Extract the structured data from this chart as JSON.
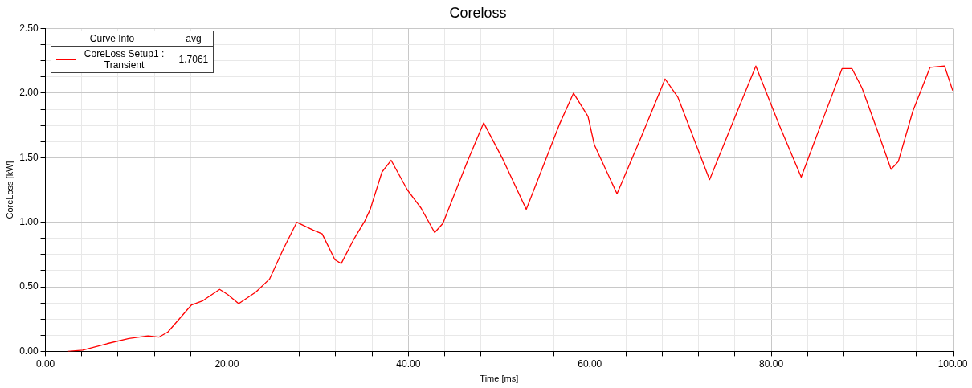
{
  "chart_data": {
    "type": "line",
    "title": "Coreloss",
    "xlabel": "Time [ms]",
    "ylabel": "CoreLoss [kW]",
    "legend_title": "Curve Info",
    "annotations": [
      "avg",
      "1.7061"
    ],
    "legend": "top left",
    "grid": true,
    "marker": "none",
    "line_style": "solid",
    "xlim": [
      0,
      100
    ],
    "ylim": [
      0,
      2.5
    ],
    "xticks": [
      {
        "value": 0,
        "label": "0.00"
      },
      {
        "value": 4,
        "label": null
      },
      {
        "value": 8,
        "label": null
      },
      {
        "value": 12,
        "label": null
      },
      {
        "value": 16,
        "label": null
      },
      {
        "value": 20,
        "label": "20.00"
      },
      {
        "value": 24,
        "label": null
      },
      {
        "value": 28,
        "label": null
      },
      {
        "value": 32,
        "label": null
      },
      {
        "value": 36,
        "label": null
      },
      {
        "value": 40,
        "label": "40.00"
      },
      {
        "value": 44,
        "label": null
      },
      {
        "value": 48,
        "label": null
      },
      {
        "value": 52,
        "label": null
      },
      {
        "value": 56,
        "label": null
      },
      {
        "value": 60,
        "label": "60.00"
      },
      {
        "value": 64,
        "label": null
      },
      {
        "value": 68,
        "label": null
      },
      {
        "value": 72,
        "label": null
      },
      {
        "value": 76,
        "label": null
      },
      {
        "value": 80,
        "label": "80.00"
      },
      {
        "value": 84,
        "label": null
      },
      {
        "value": 88,
        "label": null
      },
      {
        "value": 92,
        "label": null
      },
      {
        "value": 96,
        "label": null
      },
      {
        "value": 100,
        "label": "100.00"
      }
    ],
    "yticks": [
      {
        "value": 0,
        "label": "0.00"
      },
      {
        "value": 0.125,
        "label": null
      },
      {
        "value": 0.25,
        "label": null
      },
      {
        "value": 0.375,
        "label": null
      },
      {
        "value": 0.5,
        "label": "0.50"
      },
      {
        "value": 0.625,
        "label": null
      },
      {
        "value": 0.75,
        "label": null
      },
      {
        "value": 0.875,
        "label": null
      },
      {
        "value": 1,
        "label": "1.00"
      },
      {
        "value": 1.125,
        "label": null
      },
      {
        "value": 1.25,
        "label": null
      },
      {
        "value": 1.375,
        "label": null
      },
      {
        "value": 1.5,
        "label": "1.50"
      },
      {
        "value": 1.625,
        "label": null
      },
      {
        "value": 1.75,
        "label": null
      },
      {
        "value": 1.875,
        "label": null
      },
      {
        "value": 2,
        "label": "2.00"
      },
      {
        "value": 2.125,
        "label": null
      },
      {
        "value": 2.25,
        "label": null
      },
      {
        "value": 2.375,
        "label": null
      },
      {
        "value": 2.5,
        "label": "2.50"
      }
    ],
    "series": [
      {
        "name": "CoreLoss Setup1 : Transient",
        "color": "#ff0000",
        "x": [
          2.5,
          4.1,
          6.8,
          9.2,
          11.3,
          12.5,
          13.5,
          16.1,
          17.3,
          19.2,
          20.1,
          21.3,
          23.2,
          24.7,
          26.2,
          27.7,
          29.5,
          30.5,
          31.9,
          32.6,
          34.0,
          35.2,
          35.8,
          37.1,
          38.1,
          39.9,
          41.4,
          42.9,
          43.8,
          46.5,
          48.3,
          50.4,
          53.0,
          56.6,
          58.2,
          59.8,
          60.5,
          63.0,
          65.6,
          68.3,
          69.7,
          73.2,
          75.8,
          78.3,
          80.9,
          83.3,
          85.7,
          87.8,
          88.9,
          90.0,
          91.8,
          93.2,
          94.0,
          95.6,
          97.5,
          99.1,
          100
        ],
        "values": [
          0,
          0.01,
          0.06,
          0.1,
          0.12,
          0.11,
          0.15,
          0.36,
          0.39,
          0.48,
          0.44,
          0.37,
          0.46,
          0.56,
          0.79,
          1.0,
          0.94,
          0.91,
          0.71,
          0.68,
          0.87,
          1.01,
          1.1,
          1.39,
          1.48,
          1.25,
          1.11,
          0.92,
          0.99,
          1.47,
          1.77,
          1.49,
          1.1,
          1.75,
          2.0,
          1.82,
          1.6,
          1.22,
          1.65,
          2.11,
          1.97,
          1.33,
          1.78,
          2.21,
          1.75,
          1.35,
          1.8,
          2.19,
          2.19,
          2.04,
          1.69,
          1.41,
          1.47,
          1.86,
          2.2,
          2.21,
          2.02
        ]
      }
    ]
  }
}
